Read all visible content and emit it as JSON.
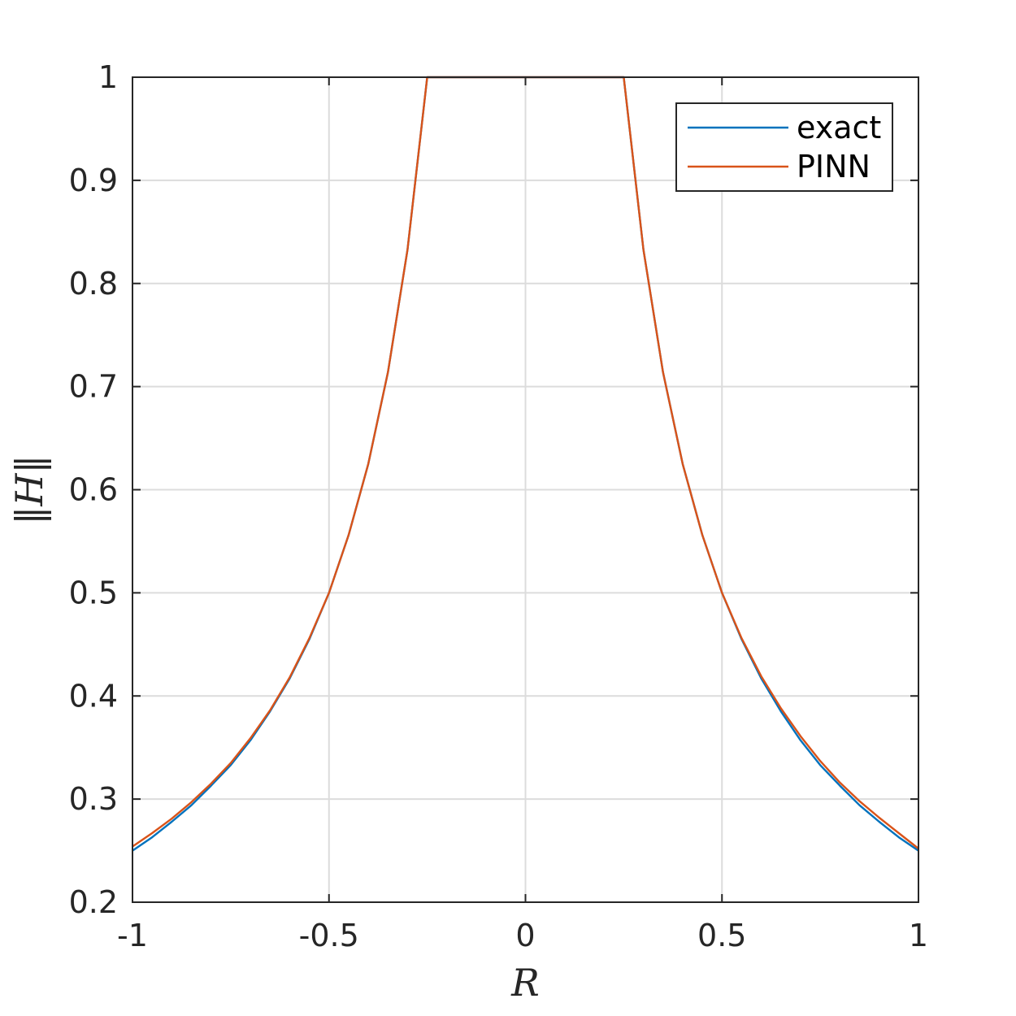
{
  "chart_data": {
    "type": "line",
    "title": "",
    "xlabel": "R",
    "ylabel": "‖H‖",
    "xlim": [
      -1,
      1
    ],
    "ylim": [
      0.2,
      1
    ],
    "xticks": [
      -1,
      -0.5,
      0,
      0.5,
      1
    ],
    "xtick_labels": [
      "-1",
      "-0.5",
      "0",
      "0.5",
      "1"
    ],
    "yticks": [
      0.2,
      0.3,
      0.4,
      0.5,
      0.6,
      0.7,
      0.8,
      0.9,
      1
    ],
    "ytick_labels": [
      "0.2",
      "0.3",
      "0.4",
      "0.5",
      "0.6",
      "0.7",
      "0.8",
      "0.9",
      "1"
    ],
    "grid": true,
    "legend_position": "top-right",
    "series": [
      {
        "name": "exact",
        "color": "#0072BD",
        "x": [
          -1,
          -0.95,
          -0.9,
          -0.85,
          -0.8,
          -0.75,
          -0.7,
          -0.65,
          -0.6,
          -0.55,
          -0.5,
          -0.45,
          -0.4,
          -0.35,
          -0.3,
          -0.25,
          0,
          0.25,
          0.3,
          0.35,
          0.4,
          0.45,
          0.5,
          0.55,
          0.6,
          0.65,
          0.7,
          0.75,
          0.8,
          0.85,
          0.9,
          0.95,
          1
        ],
        "y": [
          0.25,
          0.263,
          0.278,
          0.294,
          0.313,
          0.333,
          0.357,
          0.385,
          0.417,
          0.455,
          0.5,
          0.556,
          0.625,
          0.714,
          0.833,
          1,
          1,
          1,
          0.833,
          0.714,
          0.625,
          0.556,
          0.5,
          0.455,
          0.417,
          0.385,
          0.357,
          0.333,
          0.313,
          0.294,
          0.278,
          0.263,
          0.25
        ]
      },
      {
        "name": "PINN",
        "color": "#D95319",
        "x": [
          -1,
          -0.95,
          -0.9,
          -0.85,
          -0.8,
          -0.75,
          -0.7,
          -0.65,
          -0.6,
          -0.55,
          -0.5,
          -0.45,
          -0.4,
          -0.35,
          -0.3,
          -0.25,
          0,
          0.25,
          0.3,
          0.35,
          0.4,
          0.45,
          0.5,
          0.55,
          0.6,
          0.65,
          0.7,
          0.75,
          0.8,
          0.85,
          0.9,
          0.95,
          1
        ],
        "y": [
          0.254,
          0.267,
          0.281,
          0.297,
          0.315,
          0.335,
          0.359,
          0.386,
          0.418,
          0.456,
          0.5,
          0.556,
          0.625,
          0.714,
          0.833,
          1,
          1,
          1,
          0.833,
          0.714,
          0.625,
          0.556,
          0.5,
          0.456,
          0.419,
          0.388,
          0.361,
          0.337,
          0.316,
          0.298,
          0.282,
          0.267,
          0.252
        ]
      }
    ]
  }
}
